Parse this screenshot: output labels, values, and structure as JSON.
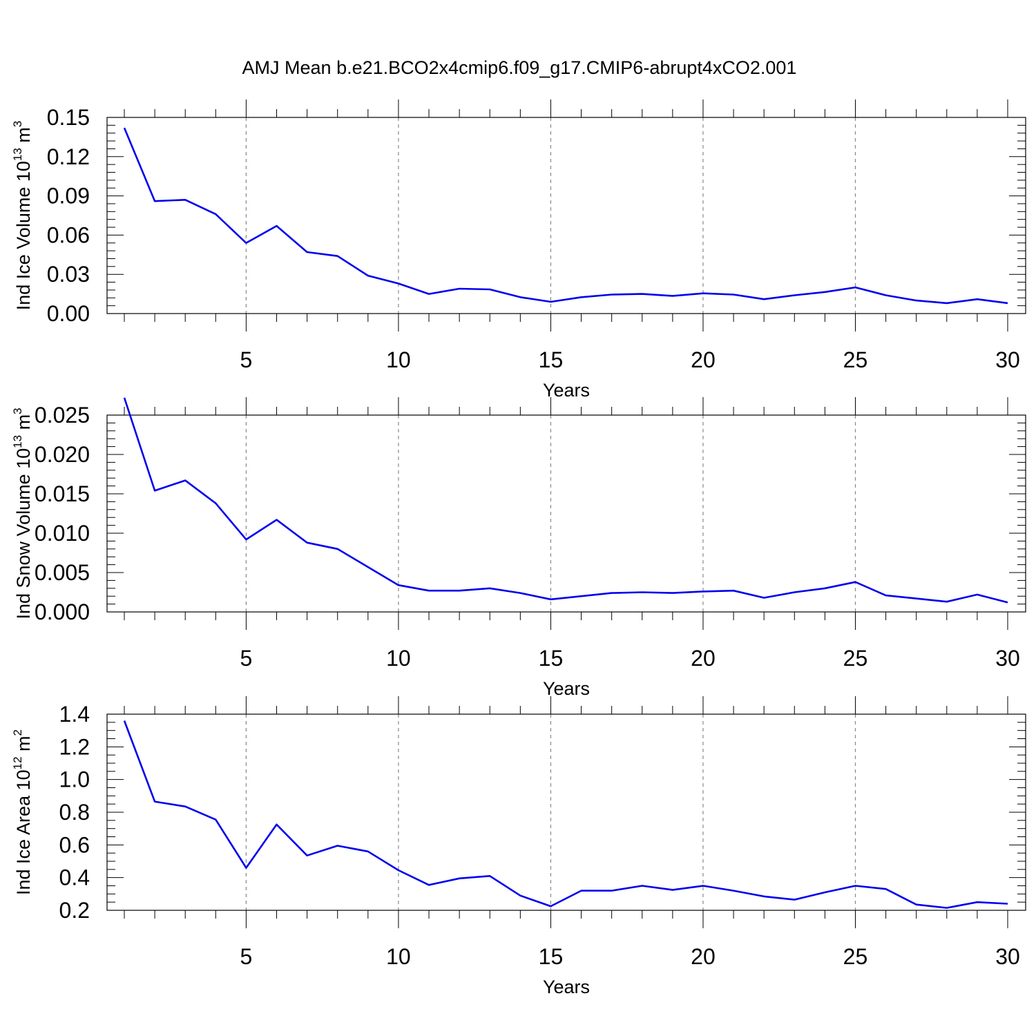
{
  "title": "AMJ Mean b.e21.BCO2x4cmip6.f09_g17.CMIP6-abrupt4xCO2.001",
  "colors": {
    "series": "#0000ee",
    "grid": "#888888"
  },
  "chart_data": [
    {
      "type": "line",
      "ylabel": {
        "text": "Ind Ice Volume 10",
        "sup": "13",
        "unit": " m",
        "unit_sup": "3"
      },
      "xlabel": "Years",
      "xlim": [
        1,
        30
      ],
      "ylim": [
        0,
        0.15
      ],
      "yticks": [
        "0.00",
        "0.03",
        "0.06",
        "0.09",
        "0.12",
        "0.15"
      ],
      "xticks": [
        "5",
        "10",
        "15",
        "20",
        "25",
        "30"
      ],
      "x": [
        1,
        2,
        3,
        4,
        5,
        6,
        7,
        8,
        9,
        10,
        11,
        12,
        13,
        14,
        15,
        16,
        17,
        18,
        19,
        20,
        21,
        22,
        23,
        24,
        25,
        26,
        27,
        28,
        29,
        30
      ],
      "series": [
        {
          "values": [
            0.142,
            0.086,
            0.087,
            0.076,
            0.054,
            0.067,
            0.047,
            0.044,
            0.029,
            0.023,
            0.015,
            0.019,
            0.0185,
            0.0125,
            0.009,
            0.0125,
            0.0145,
            0.015,
            0.0135,
            0.0155,
            0.0145,
            0.011,
            0.014,
            0.0165,
            0.02,
            0.014,
            0.01,
            0.008,
            0.011,
            0.008
          ]
        }
      ],
      "grid": "dashed vertical at major x ticks"
    },
    {
      "type": "line",
      "ylabel": {
        "text": "Ind Snow Volume 10",
        "sup": "13",
        "unit": " m",
        "unit_sup": "3"
      },
      "xlabel": "Years",
      "xlim": [
        1,
        30
      ],
      "ylim": [
        0,
        0.028
      ],
      "yticks": [
        "0.000",
        "0.005",
        "0.010",
        "0.015",
        "0.020",
        "0.025"
      ],
      "xticks": [
        "5",
        "10",
        "15",
        "20",
        "25",
        "30"
      ],
      "x": [
        1,
        2,
        3,
        4,
        5,
        6,
        7,
        8,
        9,
        10,
        11,
        12,
        13,
        14,
        15,
        16,
        17,
        18,
        19,
        20,
        21,
        22,
        23,
        24,
        25,
        26,
        27,
        28,
        29,
        30
      ],
      "series": [
        {
          "values": [
            0.0272,
            0.0154,
            0.0167,
            0.0138,
            0.0092,
            0.0117,
            0.0088,
            0.008,
            0.0057,
            0.0034,
            0.0027,
            0.0027,
            0.003,
            0.0024,
            0.0016,
            0.002,
            0.0024,
            0.0025,
            0.0024,
            0.0026,
            0.0027,
            0.0018,
            0.0025,
            0.003,
            0.0038,
            0.0021,
            0.0017,
            0.0013,
            0.0022,
            0.0012
          ]
        }
      ],
      "grid": "dashed vertical at major x ticks"
    },
    {
      "type": "line",
      "ylabel": {
        "text": "Ind Ice Area 10",
        "sup": "12",
        "unit": " m",
        "unit_sup": "2"
      },
      "xlabel": "Years",
      "xlim": [
        1,
        30
      ],
      "ylim": [
        0.2,
        1.4
      ],
      "yticks": [
        "0.2",
        "0.4",
        "0.6",
        "0.8",
        "1.0",
        "1.2",
        "1.4"
      ],
      "xticks": [
        "5",
        "10",
        "15",
        "20",
        "25",
        "30"
      ],
      "x": [
        1,
        2,
        3,
        4,
        5,
        6,
        7,
        8,
        9,
        10,
        11,
        12,
        13,
        14,
        15,
        16,
        17,
        18,
        19,
        20,
        21,
        22,
        23,
        24,
        25,
        26,
        27,
        28,
        29,
        30
      ],
      "series": [
        {
          "values": [
            1.36,
            0.865,
            0.835,
            0.755,
            0.46,
            0.725,
            0.535,
            0.595,
            0.56,
            0.445,
            0.355,
            0.395,
            0.41,
            0.29,
            0.225,
            0.32,
            0.32,
            0.35,
            0.325,
            0.35,
            0.32,
            0.285,
            0.265,
            0.31,
            0.35,
            0.33,
            0.235,
            0.215,
            0.25,
            0.24
          ]
        }
      ],
      "grid": "dashed vertical at major x ticks"
    }
  ]
}
